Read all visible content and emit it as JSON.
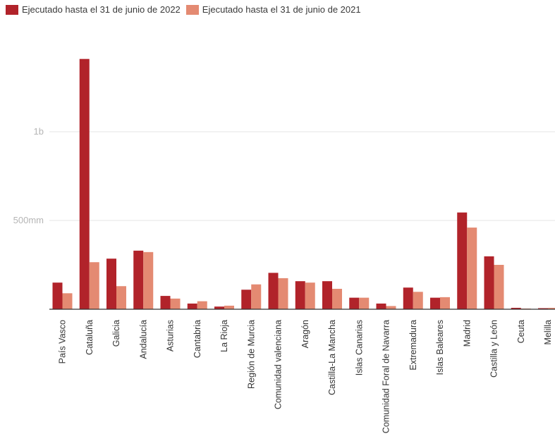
{
  "chart_data": {
    "type": "bar",
    "legend": [
      "Ejecutado hasta el 31 de junio de 2022",
      "Ejecutado hasta el 31 de junio de 2021"
    ],
    "colors": [
      "#b1232a",
      "#e48a72"
    ],
    "categories": [
      "País Vasco",
      "Cataluña",
      "Galicia",
      "Andalucía",
      "Asturias",
      "Cantabria",
      "La Rioja",
      "Región de Murcia",
      "Comunidad valenciana",
      "Aragón",
      "Castilla-La Mancha",
      "Islas Canarias",
      "Comunidad Foral de Navarra",
      "Extremadura",
      "Islas Baleares",
      "Madrid",
      "Castilla y León",
      "Ceuta",
      "Melilla"
    ],
    "series": [
      {
        "name": "Ejecutado hasta el 31 de junio de 2022",
        "values": [
          150,
          1410,
          285,
          330,
          75,
          32,
          15,
          110,
          205,
          158,
          158,
          65,
          32,
          122,
          65,
          545,
          298,
          8,
          6
        ]
      },
      {
        "name": "Ejecutado hasta el 31 de junio de 2021",
        "values": [
          90,
          265,
          130,
          322,
          60,
          45,
          20,
          140,
          175,
          150,
          115,
          65,
          18,
          98,
          68,
          460,
          250,
          4,
          8
        ]
      }
    ],
    "y_ticks": [
      {
        "value": 500,
        "label": "500mm"
      },
      {
        "value": 1000,
        "label": "1b"
      }
    ],
    "ylim": [
      0,
      1500
    ],
    "grid": true,
    "legend_position": "top-left"
  }
}
